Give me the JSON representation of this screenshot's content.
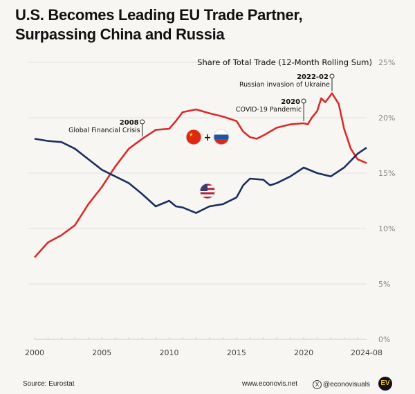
{
  "title_lines": [
    "U.S. Becomes Leading EU Trade Partner,",
    "Surpassing China and Russia"
  ],
  "chart_data": {
    "type": "line",
    "title": "Share of Total Trade (12-Month Rolling Sum)",
    "y_unit": "%",
    "ylim": [
      0,
      25
    ],
    "yticks": [
      "0%",
      "5%",
      "10%",
      "15%",
      "20%",
      "25%"
    ],
    "xlim": [
      2000,
      2024.67
    ],
    "xticks": [
      "2000",
      "2005",
      "2010",
      "2015",
      "2020",
      "2024-08"
    ],
    "grid": true,
    "series": [
      {
        "name": "China + Russia",
        "label_icons": [
          "china-flag",
          "russia-flag"
        ],
        "color": "#d92b2b",
        "x": [
          2000,
          2001,
          2002,
          2003,
          2004,
          2005,
          2006,
          2007,
          2008,
          2009,
          2010,
          2010.5,
          2011,
          2012,
          2013,
          2014,
          2015,
          2015.5,
          2016,
          2016.5,
          2017,
          2018,
          2019,
          2020,
          2020.3,
          2020.6,
          2021,
          2021.3,
          2021.6,
          2022.1,
          2022.6,
          2023,
          2023.5,
          2024,
          2024.67
        ],
        "y": [
          7.4,
          8.75,
          9.4,
          10.3,
          12.2,
          13.75,
          15.6,
          17.2,
          18.1,
          18.9,
          19.0,
          19.7,
          20.5,
          20.75,
          20.4,
          20.1,
          19.7,
          18.75,
          18.25,
          18.1,
          18.4,
          19.1,
          19.4,
          19.5,
          19.4,
          20.0,
          20.6,
          21.75,
          21.4,
          22.2,
          21.25,
          19.0,
          17.2,
          16.25,
          15.9
        ]
      },
      {
        "name": "United States",
        "label_icons": [
          "usa-flag"
        ],
        "color": "#1b2f5e",
        "x": [
          2000,
          2001,
          2002,
          2003,
          2004,
          2005,
          2006,
          2007,
          2008,
          2009,
          2010,
          2010.5,
          2011,
          2012,
          2013,
          2014,
          2015,
          2015.5,
          2016,
          2017,
          2017.5,
          2018,
          2019,
          2020,
          2021,
          2022,
          2023,
          2024,
          2024.67
        ],
        "y": [
          18.1,
          17.9,
          17.8,
          17.2,
          16.25,
          15.3,
          14.7,
          14.1,
          13.1,
          12.0,
          12.5,
          12.0,
          11.9,
          11.4,
          12.0,
          12.2,
          12.8,
          13.9,
          14.5,
          14.4,
          13.9,
          14.1,
          14.7,
          15.5,
          15.0,
          14.7,
          15.5,
          16.75,
          17.3
        ]
      }
    ],
    "annotations": [
      {
        "x": 2008,
        "y": 18.1,
        "label": "2008",
        "text": "Global Financial Crisis"
      },
      {
        "x": 2020,
        "y": 19.5,
        "label": "2020",
        "text": "COVID-19 Pandemic"
      },
      {
        "x": 2022.1,
        "y": 22.2,
        "label": "2022-02",
        "text": "Russian invasion of Ukraine"
      }
    ]
  },
  "footer": {
    "source": "Source: Eurostat",
    "website": "www.econovis.net",
    "handle": "@econovisuals",
    "logo_text": "EV"
  }
}
